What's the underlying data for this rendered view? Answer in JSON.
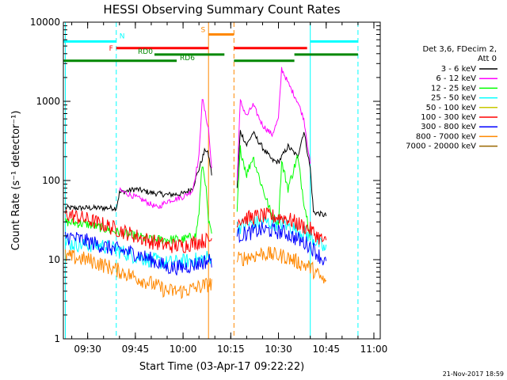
{
  "chart_data": {
    "type": "line",
    "title": "HESSI Observing Summary Count Rates",
    "xlabel": "Start Time (03-Apr-17 09:22:22)",
    "ylabel": "Count Rate (s⁻¹ detector⁻¹)",
    "x_ticks": [
      "09:30",
      "09:45",
      "10:00",
      "10:15",
      "10:30",
      "10:45",
      "11:00"
    ],
    "y_ticks": [
      "1",
      "10",
      "100",
      "1000",
      "10000"
    ],
    "xlim": [
      "09:22:22",
      "11:02:00"
    ],
    "ylim": [
      1,
      10000
    ],
    "y_scale": "log",
    "grid": false,
    "legend_position": "right",
    "legend_header": [
      "Det 3,6, FDecim 2,",
      "Att 0"
    ],
    "footer": "21-Nov-2017 18:59",
    "series": [
      {
        "name": "3 - 6 keV",
        "color": "#000000",
        "segments": [
          {
            "x": [
              "09:23",
              "09:39",
              "09:40",
              "09:45",
              "09:50",
              "09:55",
              "10:00",
              "10:03",
              "10:05",
              "10:07",
              "10:08",
              "10:09"
            ],
            "y": [
              45,
              45,
              70,
              78,
              70,
              66,
              68,
              80,
              140,
              250,
              210,
              120
            ]
          },
          {
            "x": [
              "10:17",
              "10:18",
              "10:20",
              "10:22",
              "10:25",
              "10:28",
              "10:30",
              "10:33",
              "10:36",
              "10:38",
              "10:40",
              "10:41"
            ],
            "y": [
              80,
              420,
              280,
              400,
              260,
              180,
              170,
              270,
              200,
              420,
              140,
              40
            ]
          },
          {
            "x": [
              "10:41",
              "10:45"
            ],
            "y": [
              40,
              36
            ]
          }
        ]
      },
      {
        "name": "6 - 12 keV",
        "color": "#ff00ff",
        "segments": [
          {
            "x": [
              "09:40",
              "09:45",
              "09:48",
              "09:52",
              "09:55",
              "10:00",
              "10:03",
              "10:05",
              "10:06",
              "10:07",
              "10:08",
              "10:09"
            ],
            "y": [
              75,
              62,
              55,
              45,
              55,
              62,
              75,
              200,
              1100,
              700,
              450,
              140
            ]
          },
          {
            "x": [
              "10:17",
              "10:18",
              "10:20",
              "10:22",
              "10:25",
              "10:28",
              "10:30",
              "10:31",
              "10:33",
              "10:36",
              "10:38",
              "10:40"
            ],
            "y": [
              100,
              1000,
              650,
              900,
              500,
              380,
              600,
              2600,
              1700,
              1000,
              600,
              160
            ]
          }
        ]
      },
      {
        "name": "12 - 25 keV",
        "color": "#00ff00",
        "segments": [
          {
            "x": [
              "09:23",
              "09:30",
              "09:40",
              "09:50",
              "10:00",
              "10:04",
              "10:05",
              "10:06",
              "10:07",
              "10:08",
              "10:09"
            ],
            "y": [
              30,
              28,
              22,
              18,
              18,
              20,
              40,
              160,
              100,
              30,
              20
            ]
          },
          {
            "x": [
              "10:17",
              "10:18",
              "10:20",
              "10:22",
              "10:25",
              "10:28",
              "10:30",
              "10:31",
              "10:33",
              "10:36",
              "10:38",
              "10:40"
            ],
            "y": [
              40,
              250,
              120,
              200,
              80,
              35,
              30,
              170,
              80,
              200,
              55,
              20
            ]
          }
        ]
      },
      {
        "name": "25 - 50 keV",
        "color": "#00ffff",
        "segments": [
          {
            "x": [
              "09:23",
              "09:35",
              "09:45",
              "09:55",
              "10:05",
              "10:09"
            ],
            "y": [
              16,
              15,
              11,
              9,
              10,
              11
            ]
          },
          {
            "x": [
              "10:17",
              "10:25",
              "10:32",
              "10:40",
              "10:45"
            ],
            "y": [
              26,
              30,
              28,
              20,
              13
            ]
          }
        ]
      },
      {
        "name": "50 - 100 keV",
        "color": "#c8c800",
        "segments": []
      },
      {
        "name": "100 - 300 keV",
        "color": "#ff0000",
        "segments": [
          {
            "x": [
              "09:23",
              "09:30",
              "09:37",
              "09:45",
              "09:50",
              "09:55",
              "10:00",
              "10:05",
              "10:09"
            ],
            "y": [
              38,
              32,
              26,
              20,
              17,
              15,
              15,
              17,
              18
            ]
          },
          {
            "x": [
              "10:17",
              "10:25",
              "10:32",
              "10:40",
              "10:45"
            ],
            "y": [
              32,
              36,
              34,
              24,
              16
            ]
          }
        ]
      },
      {
        "name": "300 - 800 keV",
        "color": "#0000ff",
        "segments": [
          {
            "x": [
              "09:23",
              "09:30",
              "09:37",
              "09:45",
              "09:50",
              "09:55",
              "10:00",
              "10:05",
              "10:09"
            ],
            "y": [
              20,
              17,
              14,
              12,
              10,
              8,
              8,
              9,
              10
            ]
          },
          {
            "x": [
              "10:17",
              "10:25",
              "10:32",
              "10:40",
              "10:45"
            ],
            "y": [
              20,
              24,
              22,
              15,
              9
            ]
          }
        ]
      },
      {
        "name": "800 - 7000 keV",
        "color": "#ff8800",
        "segments": [
          {
            "x": [
              "09:23",
              "09:30",
              "09:37",
              "09:45",
              "09:50",
              "09:55",
              "10:00",
              "10:05",
              "10:09"
            ],
            "y": [
              11,
              10,
              8,
              6,
              5,
              4,
              4,
              4.5,
              5
            ]
          },
          {
            "x": [
              "10:17",
              "10:25",
              "10:32",
              "10:40",
              "10:45"
            ],
            "y": [
              10,
              12,
              11,
              8,
              5
            ]
          }
        ]
      },
      {
        "name": "7000 - 20000 keV",
        "color": "#996600",
        "segments": []
      }
    ],
    "flags": [
      {
        "label": "N",
        "color": "#00ffff",
        "y": 5700,
        "ranges": [
          [
            "09:22:22",
            "09:39"
          ],
          [
            "10:40",
            "10:55"
          ]
        ]
      },
      {
        "label": "F",
        "color": "#ff0000",
        "y": 4700,
        "ranges": [
          [
            "09:39",
            "10:08"
          ],
          [
            "10:16",
            "10:39"
          ]
        ]
      },
      {
        "label": "S",
        "color": "#ff8800",
        "y": 7000,
        "ranges": [
          [
            "10:08",
            "10:16"
          ]
        ]
      },
      {
        "label": "RD0",
        "color": "#008800",
        "y": 3900,
        "ranges": [
          [
            "09:51",
            "10:13"
          ],
          [
            "10:35",
            "10:55"
          ]
        ]
      },
      {
        "label": "RD6",
        "color": "#008800",
        "y": 3250,
        "ranges": [
          [
            "09:22:22",
            "09:58"
          ],
          [
            "10:16",
            "10:35"
          ]
        ]
      }
    ],
    "vertical_markers": [
      {
        "x": "09:23",
        "color": "#00ffff",
        "style": "solid"
      },
      {
        "x": "09:39",
        "color": "#00ffff",
        "style": "dashed"
      },
      {
        "x": "10:08",
        "color": "#ff8800",
        "style": "solid"
      },
      {
        "x": "10:16",
        "color": "#ff8800",
        "style": "dashed"
      },
      {
        "x": "10:40",
        "color": "#00ffff",
        "style": "solid"
      },
      {
        "x": "10:55",
        "color": "#00ffff",
        "style": "dashed"
      }
    ]
  }
}
